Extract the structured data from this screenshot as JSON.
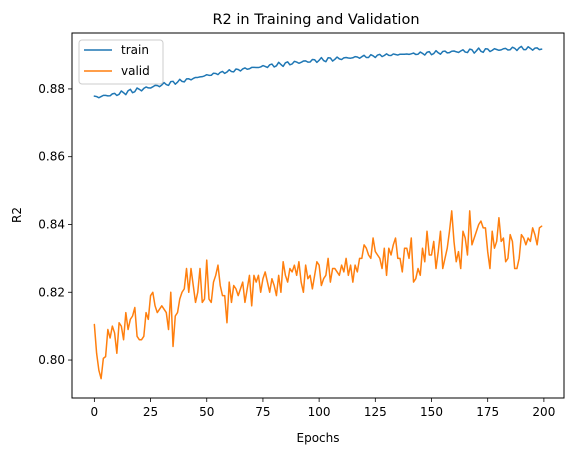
{
  "chart_data": {
    "type": "line",
    "title": "R2 in Training and Validation",
    "xlabel": "Epochs",
    "ylabel": "R2",
    "xlim": [
      -9.95,
      208.95
    ],
    "ylim": [
      0.7888,
      0.8965
    ],
    "xticks": [
      0,
      25,
      50,
      75,
      100,
      125,
      150,
      175,
      200
    ],
    "yticks": [
      0.8,
      0.82,
      0.84,
      0.86,
      0.88
    ],
    "ytick_labels": [
      "0.80",
      "0.82",
      "0.84",
      "0.86",
      "0.88"
    ],
    "grid": false,
    "legend_position": "upper-left",
    "series": [
      {
        "name": "train",
        "color": "#1f77b4",
        "keypoints": [
          [
            0,
            0.8775
          ],
          [
            10,
            0.8785
          ],
          [
            20,
            0.8798
          ],
          [
            30,
            0.8812
          ],
          [
            40,
            0.8825
          ],
          [
            50,
            0.884
          ],
          [
            60,
            0.8852
          ],
          [
            70,
            0.8862
          ],
          [
            80,
            0.887
          ],
          [
            90,
            0.8878
          ],
          [
            100,
            0.8885
          ],
          [
            110,
            0.889
          ],
          [
            120,
            0.8895
          ],
          [
            130,
            0.89
          ],
          [
            140,
            0.8903
          ],
          [
            150,
            0.8906
          ],
          [
            160,
            0.891
          ],
          [
            170,
            0.8913
          ],
          [
            180,
            0.8916
          ],
          [
            190,
            0.892
          ],
          [
            199,
            0.8918
          ]
        ]
      },
      {
        "name": "valid",
        "color": "#ff7f0e",
        "keypoints": [
          [
            0,
            0.8105
          ],
          [
            1,
            0.802
          ],
          [
            2,
            0.797
          ],
          [
            3,
            0.7945
          ],
          [
            4,
            0.8005
          ],
          [
            5,
            0.801
          ],
          [
            6,
            0.809
          ],
          [
            7,
            0.8065
          ],
          [
            8,
            0.81
          ],
          [
            9,
            0.808
          ],
          [
            10,
            0.802
          ],
          [
            11,
            0.811
          ],
          [
            12,
            0.81
          ],
          [
            13,
            0.806
          ],
          [
            14,
            0.814
          ],
          [
            15,
            0.809
          ],
          [
            16,
            0.812
          ],
          [
            17,
            0.813
          ],
          [
            18,
            0.8155
          ],
          [
            19,
            0.807
          ],
          [
            20,
            0.806
          ],
          [
            21,
            0.806
          ],
          [
            22,
            0.807
          ],
          [
            23,
            0.814
          ],
          [
            24,
            0.812
          ],
          [
            25,
            0.819
          ],
          [
            26,
            0.82
          ],
          [
            27,
            0.816
          ],
          [
            28,
            0.814
          ],
          [
            29,
            0.815
          ],
          [
            30,
            0.816
          ],
          [
            31,
            0.815
          ],
          [
            32,
            0.814
          ],
          [
            33,
            0.809
          ],
          [
            34,
            0.82
          ],
          [
            35,
            0.804
          ],
          [
            36,
            0.813
          ],
          [
            37,
            0.814
          ],
          [
            38,
            0.818
          ],
          [
            39,
            0.82
          ],
          [
            40,
            0.821
          ],
          [
            41,
            0.827
          ],
          [
            42,
            0.82
          ],
          [
            43,
            0.827
          ],
          [
            44,
            0.822
          ],
          [
            45,
            0.817
          ],
          [
            46,
            0.82
          ],
          [
            47,
            0.827
          ],
          [
            48,
            0.817
          ],
          [
            49,
            0.818
          ],
          [
            50,
            0.8295
          ],
          [
            51,
            0.818
          ],
          [
            52,
            0.817
          ],
          [
            53,
            0.823
          ],
          [
            54,
            0.825
          ],
          [
            55,
            0.828
          ],
          [
            56,
            0.822
          ],
          [
            57,
            0.819
          ],
          [
            58,
            0.819
          ],
          [
            59,
            0.811
          ],
          [
            60,
            0.823
          ],
          [
            61,
            0.817
          ],
          [
            62,
            0.822
          ],
          [
            63,
            0.821
          ],
          [
            64,
            0.819
          ],
          [
            65,
            0.821
          ],
          [
            66,
            0.823
          ],
          [
            67,
            0.817
          ],
          [
            68,
            0.821
          ],
          [
            69,
            0.825
          ],
          [
            70,
            0.816
          ],
          [
            71,
            0.825
          ],
          [
            72,
            0.823
          ],
          [
            73,
            0.825
          ],
          [
            74,
            0.82
          ],
          [
            75,
            0.824
          ],
          [
            76,
            0.826
          ],
          [
            77,
            0.823
          ],
          [
            78,
            0.82
          ],
          [
            79,
            0.824
          ],
          [
            80,
            0.822
          ],
          [
            81,
            0.819
          ],
          [
            82,
            0.825
          ],
          [
            83,
            0.82
          ],
          [
            84,
            0.829
          ],
          [
            85,
            0.825
          ],
          [
            86,
            0.823
          ],
          [
            87,
            0.827
          ],
          [
            88,
            0.826
          ],
          [
            89,
            0.828
          ],
          [
            90,
            0.825
          ],
          [
            91,
            0.829
          ],
          [
            92,
            0.823
          ],
          [
            93,
            0.82
          ],
          [
            94,
            0.828
          ],
          [
            95,
            0.824
          ],
          [
            96,
            0.825
          ],
          [
            97,
            0.821
          ],
          [
            98,
            0.825
          ],
          [
            99,
            0.829
          ],
          [
            100,
            0.828
          ],
          [
            101,
            0.822
          ],
          [
            102,
            0.824
          ],
          [
            103,
            0.825
          ],
          [
            104,
            0.83
          ],
          [
            105,
            0.823
          ],
          [
            106,
            0.827
          ],
          [
            107,
            0.827
          ],
          [
            108,
            0.826
          ],
          [
            109,
            0.825
          ],
          [
            110,
            0.828
          ],
          [
            111,
            0.826
          ],
          [
            112,
            0.83
          ],
          [
            113,
            0.825
          ],
          [
            114,
            0.828
          ],
          [
            115,
            0.823
          ],
          [
            116,
            0.828
          ],
          [
            117,
            0.826
          ],
          [
            118,
            0.83
          ],
          [
            119,
            0.83
          ],
          [
            120,
            0.834
          ],
          [
            121,
            0.833
          ],
          [
            122,
            0.831
          ],
          [
            123,
            0.83
          ],
          [
            124,
            0.836
          ],
          [
            125,
            0.832
          ],
          [
            126,
            0.831
          ],
          [
            127,
            0.83
          ],
          [
            128,
            0.827
          ],
          [
            129,
            0.833
          ],
          [
            130,
            0.825
          ],
          [
            131,
            0.833
          ],
          [
            132,
            0.831
          ],
          [
            133,
            0.834
          ],
          [
            134,
            0.836
          ],
          [
            135,
            0.83
          ],
          [
            136,
            0.83
          ],
          [
            137,
            0.826
          ],
          [
            138,
            0.833
          ],
          [
            139,
            0.833
          ],
          [
            140,
            0.83
          ],
          [
            141,
            0.836
          ],
          [
            142,
            0.823
          ],
          [
            143,
            0.824
          ],
          [
            144,
            0.827
          ],
          [
            145,
            0.825
          ],
          [
            146,
            0.833
          ],
          [
            147,
            0.829
          ],
          [
            148,
            0.838
          ],
          [
            149,
            0.831
          ],
          [
            150,
            0.831
          ],
          [
            151,
            0.835
          ],
          [
            152,
            0.827
          ],
          [
            153,
            0.832
          ],
          [
            154,
            0.838
          ],
          [
            155,
            0.827
          ],
          [
            156,
            0.83
          ],
          [
            157,
            0.833
          ],
          [
            158,
            0.838
          ],
          [
            159,
            0.844
          ],
          [
            160,
            0.835
          ],
          [
            161,
            0.829
          ],
          [
            162,
            0.832
          ],
          [
            163,
            0.827
          ],
          [
            164,
            0.838
          ],
          [
            165,
            0.836
          ],
          [
            166,
            0.831
          ],
          [
            167,
            0.844
          ],
          [
            168,
            0.834
          ],
          [
            169,
            0.836
          ],
          [
            170,
            0.838
          ],
          [
            171,
            0.84
          ],
          [
            172,
            0.841
          ],
          [
            173,
            0.839
          ],
          [
            174,
            0.839
          ],
          [
            175,
            0.832
          ],
          [
            176,
            0.827
          ],
          [
            177,
            0.838
          ],
          [
            178,
            0.833
          ],
          [
            179,
            0.835
          ],
          [
            180,
            0.842
          ],
          [
            181,
            0.835
          ],
          [
            182,
            0.836
          ],
          [
            183,
            0.829
          ],
          [
            184,
            0.83
          ],
          [
            185,
            0.837
          ],
          [
            186,
            0.835
          ],
          [
            187,
            0.827
          ],
          [
            188,
            0.827
          ],
          [
            189,
            0.83
          ],
          [
            190,
            0.837
          ],
          [
            191,
            0.836
          ],
          [
            192,
            0.834
          ],
          [
            193,
            0.836
          ],
          [
            194,
            0.835
          ],
          [
            195,
            0.839
          ],
          [
            196,
            0.837
          ],
          [
            197,
            0.834
          ],
          [
            198,
            0.839
          ],
          [
            199,
            0.8395
          ]
        ]
      }
    ]
  }
}
